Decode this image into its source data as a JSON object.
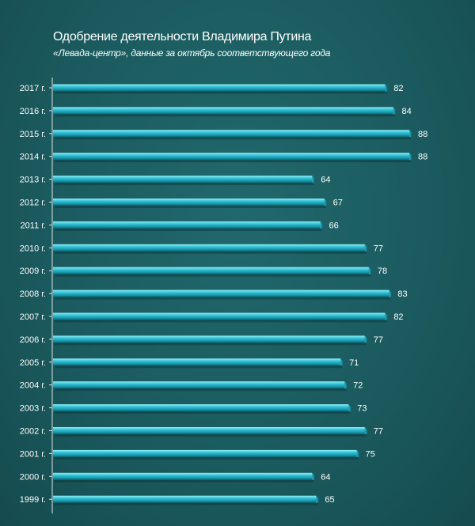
{
  "chart_data": {
    "type": "bar",
    "orientation": "horizontal",
    "title": "Одобрение деятельности Владимира Путина",
    "subtitle": "«Левада-центр», данные за октябрь соответствующего года",
    "categories": [
      "2017 г.",
      "2016 г.",
      "2015 г.",
      "2014 г.",
      "2013 г.",
      "2012 г.",
      "2011 г.",
      "2010 г.",
      "2009 г.",
      "2008 г.",
      "2007 г.",
      "2006 г.",
      "2005 г.",
      "2004 г.",
      "2003 г.",
      "2002 г.",
      "2001 г.",
      "2000 г.",
      "1999 г."
    ],
    "values": [
      82,
      84,
      88,
      88,
      64,
      67,
      66,
      77,
      78,
      83,
      82,
      77,
      71,
      72,
      73,
      77,
      75,
      64,
      65
    ],
    "xlim": [
      0,
      88
    ],
    "grid": false,
    "legend": "none",
    "colors": {
      "background": "#1b5b5f",
      "bar_light": "#7fe6f2",
      "bar_mid": "#1fa9bd",
      "bar_dark": "#0d6c7c",
      "text": "#ffffff",
      "axis": "#d8e4e4"
    }
  }
}
